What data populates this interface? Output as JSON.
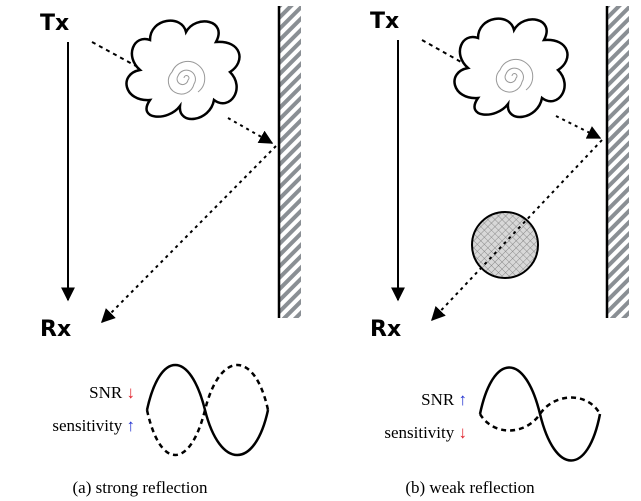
{
  "panels": [
    {
      "tx": "Tx",
      "rx": "Rx",
      "labels": [
        {
          "text": "SNR",
          "arrow": "↓"
        },
        {
          "text": "sensitivity",
          "arrow": "↑"
        }
      ],
      "caption": "(a) strong reflection"
    },
    {
      "tx": "Tx",
      "rx": "Rx",
      "labels": [
        {
          "text": "SNR",
          "arrow": "↑"
        },
        {
          "text": "sensitivity",
          "arrow": "↓"
        }
      ],
      "caption": "(b) weak reflection"
    }
  ]
}
